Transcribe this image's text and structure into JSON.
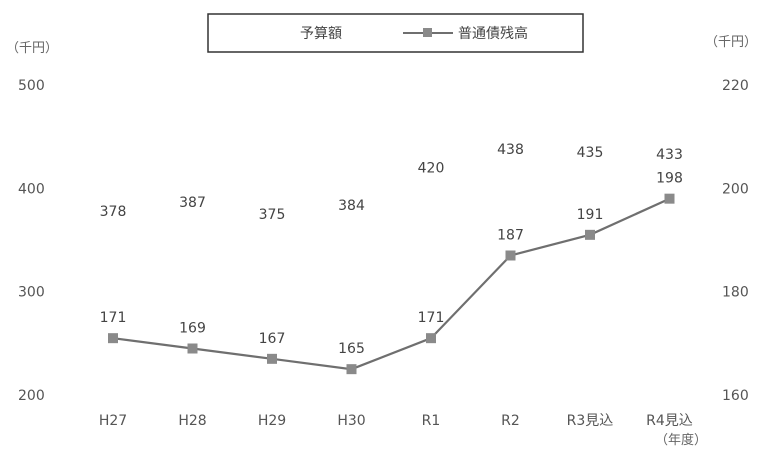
{
  "chart_data": {
    "type": "line",
    "categories": [
      "H27",
      "H28",
      "H29",
      "H30",
      "R1",
      "R2",
      "R3見込",
      "R4見込"
    ],
    "series": [
      {
        "name": "予算額",
        "axis": "left",
        "values": [
          378,
          387,
          375,
          384,
          420,
          438,
          435,
          433
        ],
        "markers": "none",
        "line": "none"
      },
      {
        "name": "普通債残高",
        "axis": "right",
        "values": [
          171,
          169,
          167,
          165,
          171,
          187,
          191,
          198
        ],
        "color": "#6f6f6f",
        "marker_color": "#8a8a8a"
      }
    ],
    "y_left": {
      "unit": "（千円）",
      "ticks": [
        "500",
        "400",
        "300",
        "200"
      ],
      "ylim": [
        200,
        500
      ]
    },
    "y_right": {
      "unit": "（千円）",
      "ticks": [
        "220",
        "200",
        "180",
        "160"
      ],
      "ylim": [
        160,
        220
      ]
    },
    "x_unit": "（年度）",
    "legend": {
      "placement": "top-center",
      "items": [
        "予算額",
        "普通債残高"
      ]
    },
    "grid": false
  }
}
